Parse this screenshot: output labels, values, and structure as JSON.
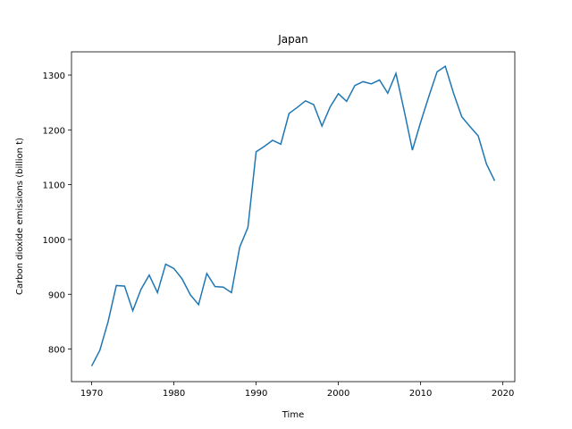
{
  "chart_data": {
    "type": "line",
    "title": "Japan",
    "xlabel": "Time",
    "ylabel": "Carbon dioxide emissions (billion t)",
    "x": [
      1970,
      1971,
      1972,
      1973,
      1974,
      1975,
      1976,
      1977,
      1978,
      1979,
      1980,
      1981,
      1982,
      1983,
      1984,
      1985,
      1986,
      1987,
      1988,
      1989,
      1990,
      1991,
      1992,
      1993,
      1994,
      1995,
      1996,
      1997,
      1998,
      1999,
      2000,
      2001,
      2002,
      2003,
      2004,
      2005,
      2006,
      2007,
      2008,
      2009,
      2010,
      2011,
      2012,
      2013,
      2014,
      2015,
      2016,
      2017,
      2018,
      2019
    ],
    "series": [
      {
        "name": "Japan",
        "color": "#1f77b4",
        "values": [
          769,
          798,
          850,
          916,
          915,
          870,
          909,
          935,
          903,
          955,
          947,
          928,
          899,
          881,
          938,
          914,
          913,
          903,
          986,
          1022,
          1160,
          1170,
          1181,
          1174,
          1230,
          1241,
          1253,
          1246,
          1207,
          1242,
          1266,
          1252,
          1281,
          1288,
          1284,
          1291,
          1267,
          1303,
          1235,
          1163,
          1214,
          1261,
          1306,
          1316,
          1267,
          1224,
          1206,
          1189,
          1138,
          1107
        ]
      }
    ],
    "xlim": [
      1967.55,
      2021.45
    ],
    "xticks": [
      1970,
      1980,
      1990,
      2000,
      2010,
      2020
    ],
    "ylim": [
      740.6,
      1342.4
    ],
    "yticks": [
      800,
      900,
      1000,
      1100,
      1200,
      1300
    ]
  }
}
